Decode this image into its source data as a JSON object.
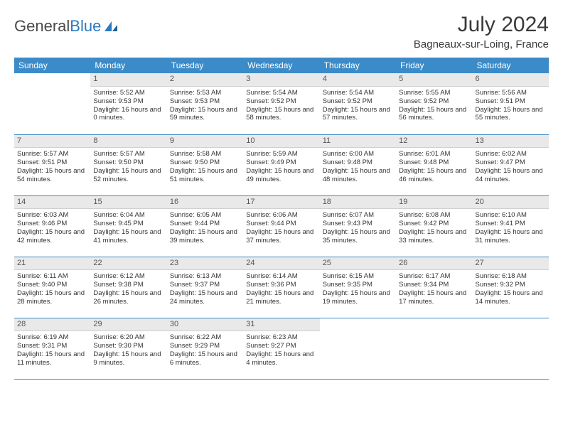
{
  "logo": {
    "text1": "General",
    "text2": "Blue"
  },
  "title": "July 2024",
  "location": "Bagneaux-sur-Loing, France",
  "colors": {
    "header_bg": "#3b8bc8",
    "header_fg": "#ffffff",
    "daynum_bg": "#e9e9e9",
    "rule": "#3b8bc8",
    "logo_gray": "#4a4a4a",
    "logo_blue": "#2b7abf"
  },
  "weekdays": [
    "Sunday",
    "Monday",
    "Tuesday",
    "Wednesday",
    "Thursday",
    "Friday",
    "Saturday"
  ],
  "weeks": [
    [
      null,
      {
        "n": "1",
        "sr": "5:52 AM",
        "ss": "9:53 PM",
        "dl": "16 hours and 0 minutes."
      },
      {
        "n": "2",
        "sr": "5:53 AM",
        "ss": "9:53 PM",
        "dl": "15 hours and 59 minutes."
      },
      {
        "n": "3",
        "sr": "5:54 AM",
        "ss": "9:52 PM",
        "dl": "15 hours and 58 minutes."
      },
      {
        "n": "4",
        "sr": "5:54 AM",
        "ss": "9:52 PM",
        "dl": "15 hours and 57 minutes."
      },
      {
        "n": "5",
        "sr": "5:55 AM",
        "ss": "9:52 PM",
        "dl": "15 hours and 56 minutes."
      },
      {
        "n": "6",
        "sr": "5:56 AM",
        "ss": "9:51 PM",
        "dl": "15 hours and 55 minutes."
      }
    ],
    [
      {
        "n": "7",
        "sr": "5:57 AM",
        "ss": "9:51 PM",
        "dl": "15 hours and 54 minutes."
      },
      {
        "n": "8",
        "sr": "5:57 AM",
        "ss": "9:50 PM",
        "dl": "15 hours and 52 minutes."
      },
      {
        "n": "9",
        "sr": "5:58 AM",
        "ss": "9:50 PM",
        "dl": "15 hours and 51 minutes."
      },
      {
        "n": "10",
        "sr": "5:59 AM",
        "ss": "9:49 PM",
        "dl": "15 hours and 49 minutes."
      },
      {
        "n": "11",
        "sr": "6:00 AM",
        "ss": "9:48 PM",
        "dl": "15 hours and 48 minutes."
      },
      {
        "n": "12",
        "sr": "6:01 AM",
        "ss": "9:48 PM",
        "dl": "15 hours and 46 minutes."
      },
      {
        "n": "13",
        "sr": "6:02 AM",
        "ss": "9:47 PM",
        "dl": "15 hours and 44 minutes."
      }
    ],
    [
      {
        "n": "14",
        "sr": "6:03 AM",
        "ss": "9:46 PM",
        "dl": "15 hours and 42 minutes."
      },
      {
        "n": "15",
        "sr": "6:04 AM",
        "ss": "9:45 PM",
        "dl": "15 hours and 41 minutes."
      },
      {
        "n": "16",
        "sr": "6:05 AM",
        "ss": "9:44 PM",
        "dl": "15 hours and 39 minutes."
      },
      {
        "n": "17",
        "sr": "6:06 AM",
        "ss": "9:44 PM",
        "dl": "15 hours and 37 minutes."
      },
      {
        "n": "18",
        "sr": "6:07 AM",
        "ss": "9:43 PM",
        "dl": "15 hours and 35 minutes."
      },
      {
        "n": "19",
        "sr": "6:08 AM",
        "ss": "9:42 PM",
        "dl": "15 hours and 33 minutes."
      },
      {
        "n": "20",
        "sr": "6:10 AM",
        "ss": "9:41 PM",
        "dl": "15 hours and 31 minutes."
      }
    ],
    [
      {
        "n": "21",
        "sr": "6:11 AM",
        "ss": "9:40 PM",
        "dl": "15 hours and 28 minutes."
      },
      {
        "n": "22",
        "sr": "6:12 AM",
        "ss": "9:38 PM",
        "dl": "15 hours and 26 minutes."
      },
      {
        "n": "23",
        "sr": "6:13 AM",
        "ss": "9:37 PM",
        "dl": "15 hours and 24 minutes."
      },
      {
        "n": "24",
        "sr": "6:14 AM",
        "ss": "9:36 PM",
        "dl": "15 hours and 21 minutes."
      },
      {
        "n": "25",
        "sr": "6:15 AM",
        "ss": "9:35 PM",
        "dl": "15 hours and 19 minutes."
      },
      {
        "n": "26",
        "sr": "6:17 AM",
        "ss": "9:34 PM",
        "dl": "15 hours and 17 minutes."
      },
      {
        "n": "27",
        "sr": "6:18 AM",
        "ss": "9:32 PM",
        "dl": "15 hours and 14 minutes."
      }
    ],
    [
      {
        "n": "28",
        "sr": "6:19 AM",
        "ss": "9:31 PM",
        "dl": "15 hours and 11 minutes."
      },
      {
        "n": "29",
        "sr": "6:20 AM",
        "ss": "9:30 PM",
        "dl": "15 hours and 9 minutes."
      },
      {
        "n": "30",
        "sr": "6:22 AM",
        "ss": "9:29 PM",
        "dl": "15 hours and 6 minutes."
      },
      {
        "n": "31",
        "sr": "6:23 AM",
        "ss": "9:27 PM",
        "dl": "15 hours and 4 minutes."
      },
      null,
      null,
      null
    ]
  ],
  "labels": {
    "sunrise": "Sunrise:",
    "sunset": "Sunset:",
    "daylight": "Daylight:"
  }
}
